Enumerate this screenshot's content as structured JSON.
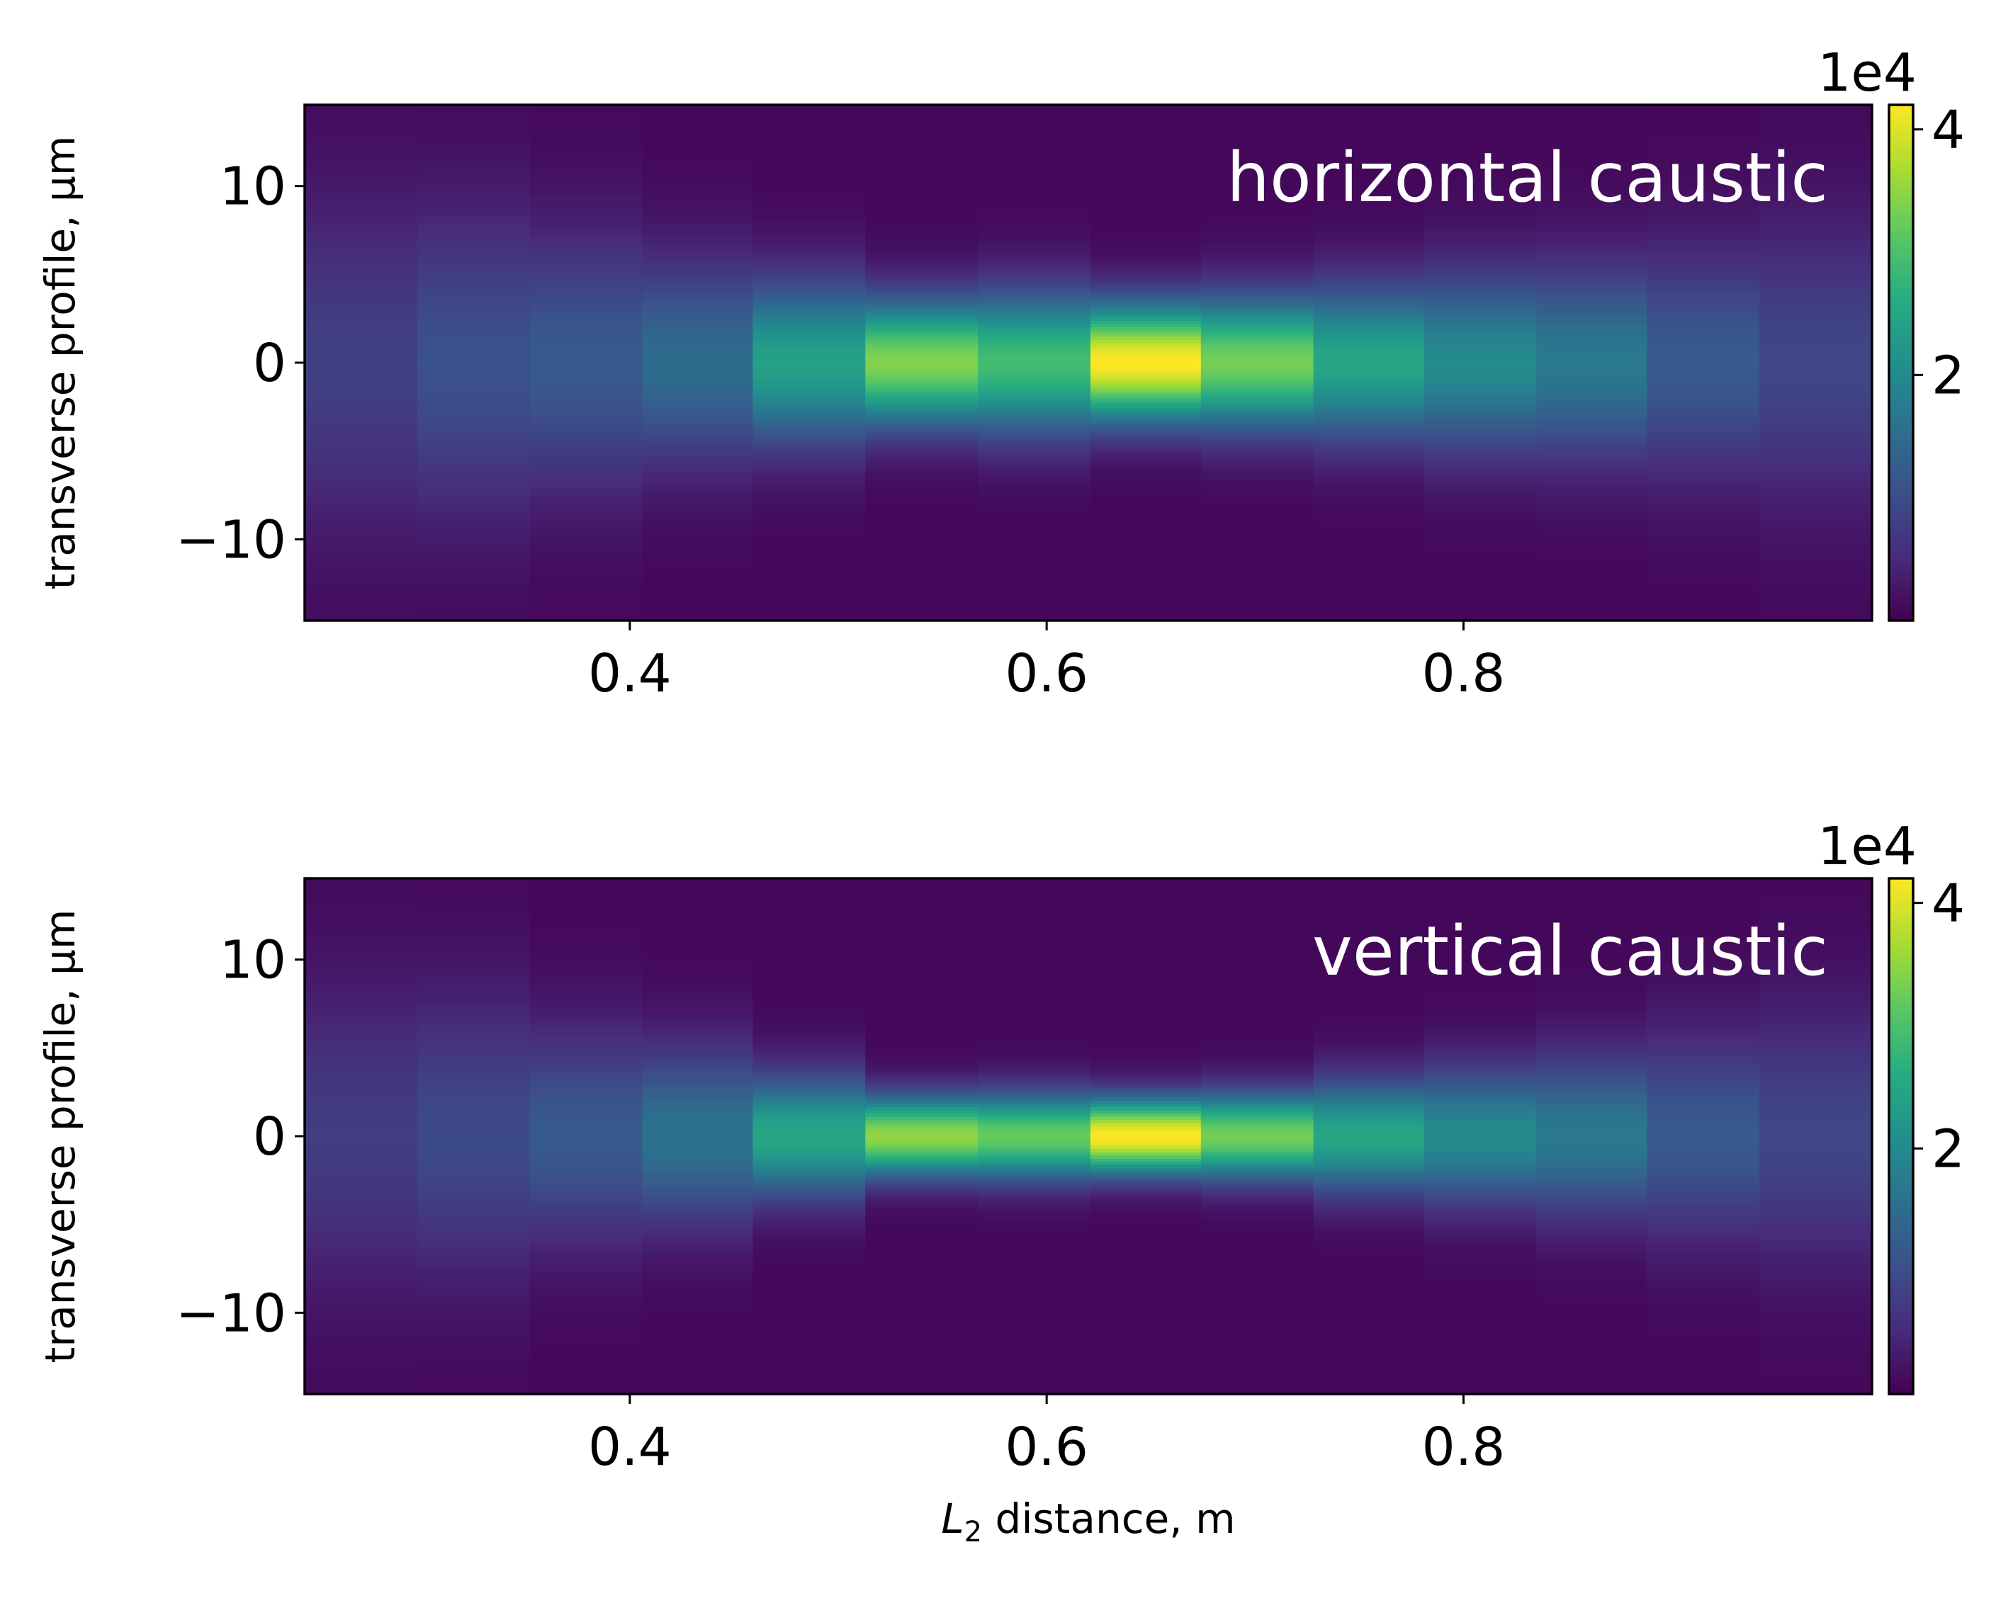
{
  "chart_data": [
    {
      "type": "heatmap",
      "label": "horizontal caustic",
      "ylabel": "transverse profile, μm",
      "xlabel": "",
      "xlim": [
        0.244,
        0.996
      ],
      "ylim": [
        -14.6,
        14.6
      ],
      "xticks": [
        "0.4",
        "0.6",
        "0.8"
      ],
      "xtick_values": [
        0.4,
        0.6,
        0.8
      ],
      "yticks": [
        "10",
        "0",
        "−10"
      ],
      "ytick_values": [
        10,
        0,
        -10
      ],
      "colorbar": {
        "colormap": "viridis",
        "range": [
          0,
          42000
        ],
        "ticks": [
          "2",
          "4"
        ],
        "tick_values": [
          20000,
          40000
        ],
        "exponent_label": "1e4"
      },
      "columns": [
        {
          "x0": 0.244,
          "x1": 0.298,
          "peak": 8000,
          "sigma": 6.5
        },
        {
          "x0": 0.298,
          "x1": 0.352,
          "peak": 10500,
          "sigma": 6.0
        },
        {
          "x0": 0.352,
          "x1": 0.406,
          "peak": 12000,
          "sigma": 5.0
        },
        {
          "x0": 0.406,
          "x1": 0.459,
          "peak": 15000,
          "sigma": 4.0
        },
        {
          "x0": 0.459,
          "x1": 0.513,
          "peak": 24000,
          "sigma": 3.2
        },
        {
          "x0": 0.513,
          "x1": 0.567,
          "peak": 34000,
          "sigma": 2.5
        },
        {
          "x0": 0.567,
          "x1": 0.621,
          "peak": 29000,
          "sigma": 2.8
        },
        {
          "x0": 0.621,
          "x1": 0.674,
          "peak": 42000,
          "sigma": 2.3
        },
        {
          "x0": 0.674,
          "x1": 0.728,
          "peak": 33000,
          "sigma": 2.6
        },
        {
          "x0": 0.728,
          "x1": 0.781,
          "peak": 25000,
          "sigma": 3.0
        },
        {
          "x0": 0.781,
          "x1": 0.835,
          "peak": 20000,
          "sigma": 3.5
        },
        {
          "x0": 0.835,
          "x1": 0.888,
          "peak": 17000,
          "sigma": 3.8
        },
        {
          "x0": 0.888,
          "x1": 0.942,
          "peak": 12000,
          "sigma": 4.5
        },
        {
          "x0": 0.942,
          "x1": 0.996,
          "peak": 9000,
          "sigma": 5.5
        }
      ]
    },
    {
      "type": "heatmap",
      "label": "vertical caustic",
      "ylabel": "transverse profile, μm",
      "xlabel_math": "L",
      "xlabel_sub": "2",
      "xlabel_rest": " distance, m",
      "xlim": [
        0.244,
        0.996
      ],
      "ylim": [
        -14.6,
        14.6
      ],
      "xticks": [
        "0.4",
        "0.6",
        "0.8"
      ],
      "xtick_values": [
        0.4,
        0.6,
        0.8
      ],
      "yticks": [
        "10",
        "0",
        "−10"
      ],
      "ytick_values": [
        10,
        0,
        -10
      ],
      "colorbar": {
        "colormap": "viridis",
        "range": [
          0,
          42000
        ],
        "ticks": [
          "2",
          "4"
        ],
        "tick_values": [
          20000,
          40000
        ],
        "exponent_label": "1e4"
      },
      "columns": [
        {
          "x0": 0.244,
          "x1": 0.298,
          "peak": 7500,
          "sigma": 6.0
        },
        {
          "x0": 0.298,
          "x1": 0.352,
          "peak": 9500,
          "sigma": 5.5
        },
        {
          "x0": 0.352,
          "x1": 0.406,
          "peak": 12000,
          "sigma": 4.2
        },
        {
          "x0": 0.406,
          "x1": 0.459,
          "peak": 16000,
          "sigma": 3.5
        },
        {
          "x0": 0.459,
          "x1": 0.513,
          "peak": 25000,
          "sigma": 2.4
        },
        {
          "x0": 0.513,
          "x1": 0.567,
          "peak": 35000,
          "sigma": 1.6
        },
        {
          "x0": 0.567,
          "x1": 0.621,
          "peak": 32000,
          "sigma": 1.7
        },
        {
          "x0": 0.621,
          "x1": 0.674,
          "peak": 42000,
          "sigma": 1.5
        },
        {
          "x0": 0.674,
          "x1": 0.728,
          "peak": 33000,
          "sigma": 1.7
        },
        {
          "x0": 0.728,
          "x1": 0.781,
          "peak": 25000,
          "sigma": 2.2
        },
        {
          "x0": 0.781,
          "x1": 0.835,
          "peak": 20000,
          "sigma": 2.7
        },
        {
          "x0": 0.835,
          "x1": 0.888,
          "peak": 17000,
          "sigma": 3.2
        },
        {
          "x0": 0.888,
          "x1": 0.942,
          "peak": 12000,
          "sigma": 4.0
        },
        {
          "x0": 0.942,
          "x1": 0.996,
          "peak": 9000,
          "sigma": 5.0
        }
      ]
    }
  ]
}
